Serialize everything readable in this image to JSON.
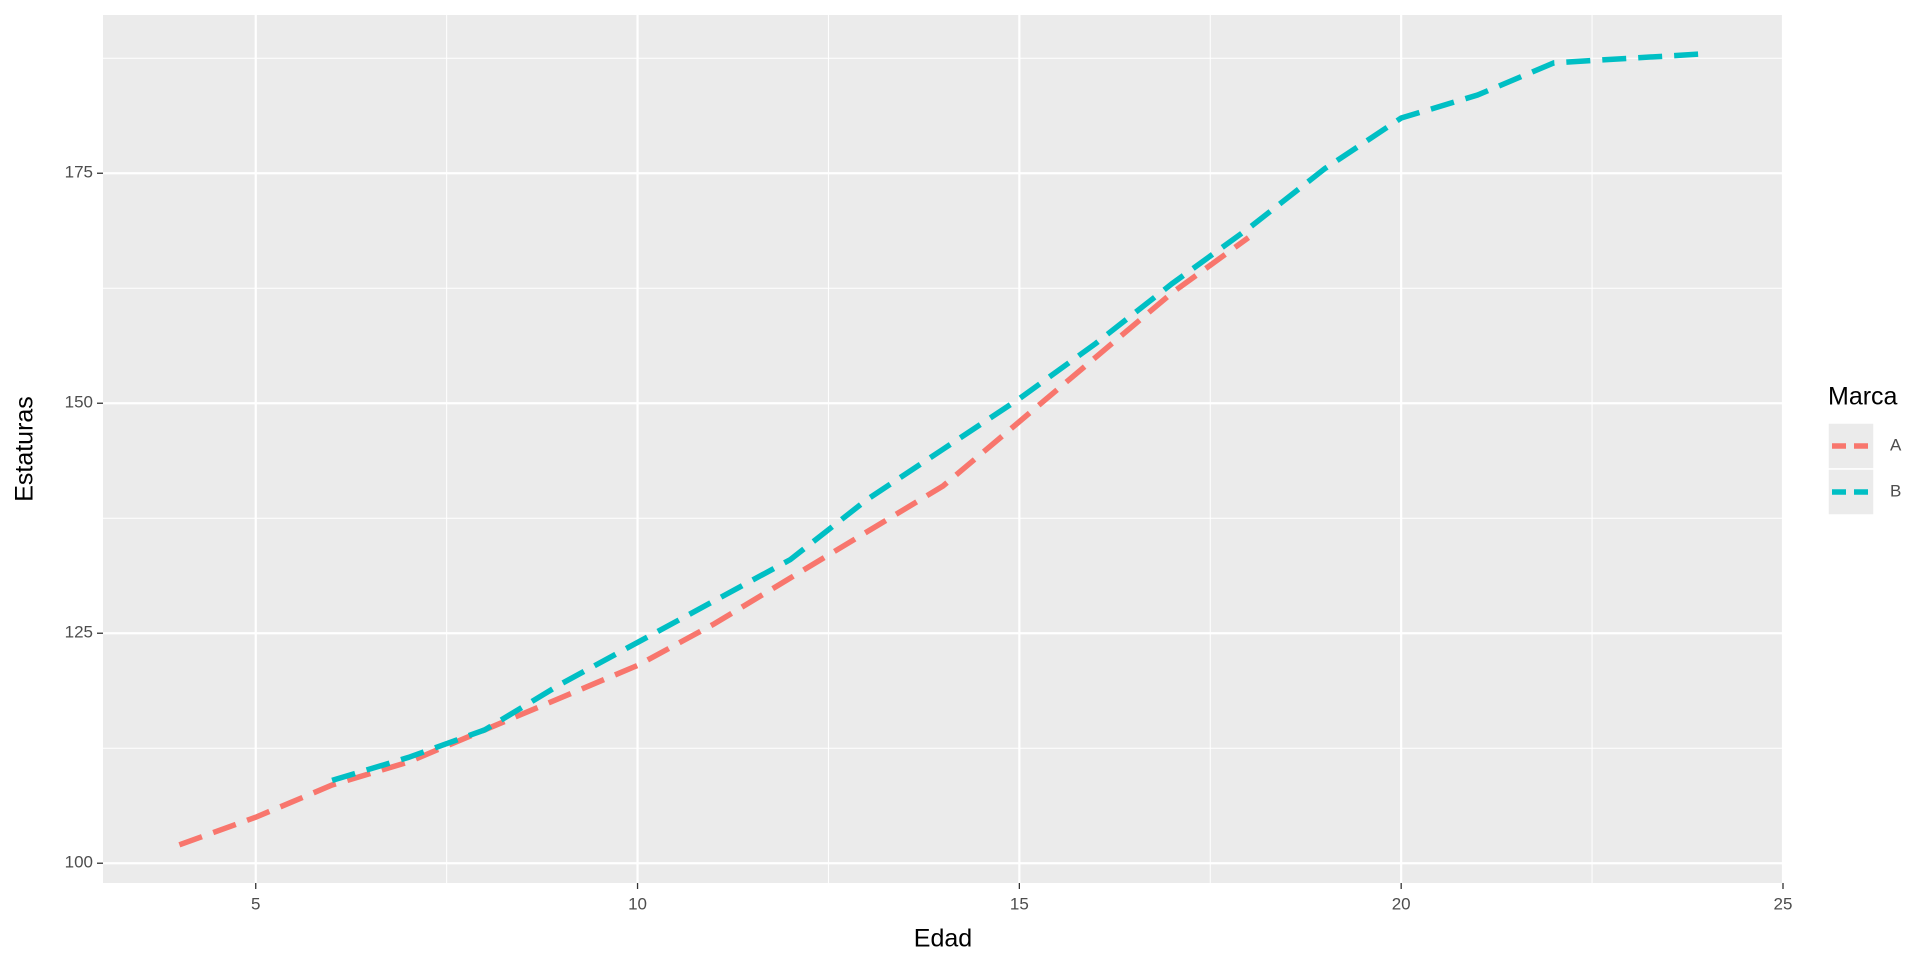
{
  "chart_data": {
    "type": "line",
    "x_label": "Edad",
    "y_label": "Estaturas",
    "legend_title": "Marca",
    "legend_position": "right",
    "xlim": [
      3,
      25
    ],
    "xticks": [
      5,
      10,
      15,
      20,
      25
    ],
    "x_minor_grid": [
      7.5,
      12.5,
      17.5,
      22.5
    ],
    "ylim": [
      97.85,
      192.2
    ],
    "yticks": [
      100,
      125,
      150,
      175
    ],
    "y_minor_grid": [
      112.5,
      137.5,
      162.5,
      187.5
    ],
    "grid": true,
    "line_style": "dashed",
    "series": [
      {
        "name": "A",
        "color": "#F8766D",
        "x": [
          4,
          5,
          6,
          7,
          8,
          9,
          10,
          11,
          12,
          13,
          14,
          15,
          16,
          17,
          18
        ],
        "values": [
          102,
          105,
          108.5,
          111,
          114.5,
          118,
          121.5,
          126,
          131,
          136,
          141,
          148,
          155,
          162,
          168
        ]
      },
      {
        "name": "B",
        "color": "#00BFC4",
        "x": [
          6,
          7,
          8,
          9,
          10,
          11,
          12,
          13,
          14,
          15,
          16,
          17,
          18,
          19,
          20,
          21,
          22,
          23,
          24
        ],
        "values": [
          109,
          111.5,
          114.5,
          119.5,
          124,
          128.5,
          133,
          139.5,
          145,
          150.5,
          156.5,
          163,
          169,
          175.5,
          181,
          183.5,
          187,
          187.5,
          188
        ]
      }
    ]
  }
}
